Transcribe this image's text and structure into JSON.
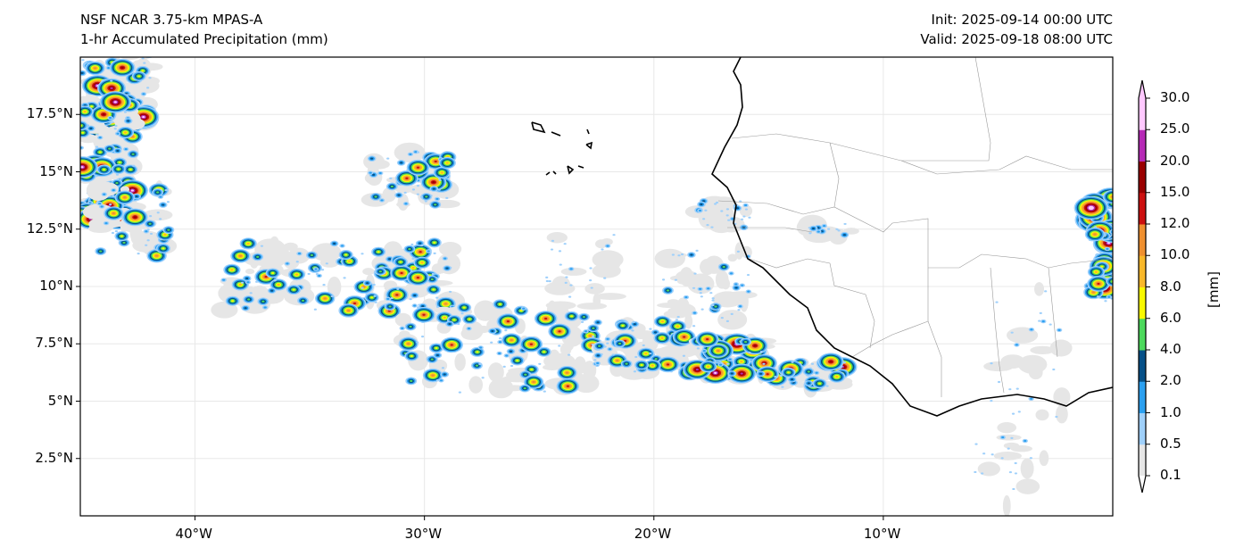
{
  "header": {
    "model": "NSF NCAR 3.75-km MPAS-A",
    "field": "1-hr Accumulated Precipitation (mm)",
    "init": "Init: 2025-09-14 00:00 UTC",
    "valid": "Valid: 2025-09-18 08:00 UTC"
  },
  "map": {
    "extent": {
      "lon": [
        -45,
        0
      ],
      "lat": [
        0,
        20
      ]
    },
    "x_ticks": [
      "40°W",
      "30°W",
      "20°W",
      "10°W"
    ],
    "y_ticks": [
      "17.5°N",
      "15°N",
      "12.5°N",
      "10°N",
      "7.5°N",
      "5°N",
      "2.5°N"
    ]
  },
  "colorbar": {
    "label": "[mm]",
    "levels": [
      "0.1",
      "0.5",
      "1.0",
      "2.0",
      "4.0",
      "6.0",
      "8.0",
      "10.0",
      "12.0",
      "15.0",
      "20.0",
      "25.0",
      "30.0"
    ],
    "colors": [
      "#e6e6e6",
      "#9fd0fb",
      "#2ba0f0",
      "#065088",
      "#4cd95c",
      "#f9f900",
      "#f9b82a",
      "#ef9030",
      "#cc1010",
      "#990000",
      "#b62ab6",
      "#ffc8ff"
    ]
  }
}
